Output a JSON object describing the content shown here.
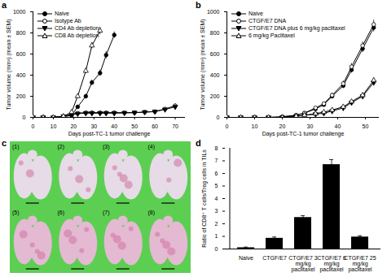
{
  "chart_data": [
    {
      "type": "line",
      "title": "a",
      "x_label": "Days post-TC-1 tumor challenge",
      "y_label": "Tumor volume (mm³) (mean ± SEM)",
      "xlim": [
        0,
        75
      ],
      "xticks": [
        0,
        10,
        20,
        30,
        40,
        50,
        60,
        70
      ],
      "ylim": [
        0,
        1000
      ],
      "yticks": [
        0,
        200,
        400,
        600,
        800,
        1000
      ],
      "legend": "top-left",
      "series": [
        {
          "name": "Naive",
          "color": "#000000",
          "marker": "circle",
          "x": [
            0,
            5,
            10,
            15,
            19,
            22,
            26,
            29,
            33,
            36,
            40
          ],
          "values": [
            0,
            0,
            0,
            5,
            20,
            100,
            200,
            330,
            420,
            590,
            780
          ],
          "errors": [
            0,
            0,
            0,
            2,
            5,
            15,
            20,
            25,
            30,
            35,
            30
          ]
        },
        {
          "name": "Isotype Ab",
          "color": "#000000",
          "marker": "circle-open",
          "x": [
            0,
            5,
            10,
            15,
            19,
            22,
            26,
            29,
            33,
            36,
            40,
            45,
            50,
            55,
            60,
            65,
            70
          ],
          "values": [
            0,
            0,
            0,
            10,
            30,
            40,
            45,
            45,
            45,
            45,
            45,
            45,
            45,
            50,
            55,
            80,
            110
          ],
          "errors": [
            0,
            0,
            0,
            3,
            5,
            5,
            5,
            5,
            5,
            5,
            5,
            5,
            5,
            5,
            5,
            10,
            20
          ]
        },
        {
          "name": "CD4 Ab depletion",
          "color": "#000000",
          "marker": "triangle-down",
          "x": [
            0,
            5,
            10,
            15,
            19,
            22,
            26,
            29,
            33,
            36,
            40,
            45,
            50,
            55,
            60,
            65,
            70
          ],
          "values": [
            0,
            0,
            0,
            10,
            25,
            35,
            40,
            40,
            40,
            40,
            40,
            42,
            45,
            50,
            55,
            75,
            100
          ],
          "errors": [
            0,
            0,
            0,
            3,
            5,
            5,
            5,
            5,
            5,
            5,
            5,
            5,
            5,
            5,
            5,
            10,
            15
          ]
        },
        {
          "name": "CD8 Ab depletion",
          "color": "#000000",
          "marker": "triangle-open",
          "x": [
            0,
            5,
            10,
            15,
            19,
            22,
            26,
            29,
            33
          ],
          "values": [
            0,
            0,
            0,
            10,
            50,
            200,
            440,
            680,
            820
          ],
          "errors": [
            0,
            0,
            0,
            3,
            8,
            15,
            25,
            30,
            35
          ]
        }
      ]
    },
    {
      "type": "line",
      "title": "b",
      "x_label": "Days post-TC-1 tumor challenge",
      "y_label": "Tumor volume (mm³) (mean ± SEM)",
      "xlim": [
        0,
        55
      ],
      "xticks": [
        0,
        10,
        20,
        30,
        40,
        50
      ],
      "ylim": [
        0,
        1000
      ],
      "yticks": [
        0,
        200,
        400,
        600,
        800,
        1000
      ],
      "legend": "top-left",
      "series": [
        {
          "name": "Naive",
          "color": "#000000",
          "marker": "circle",
          "x": [
            0,
            5,
            10,
            15,
            20,
            25,
            28,
            32,
            35,
            38,
            42,
            45,
            49,
            53
          ],
          "values": [
            0,
            0,
            0,
            0,
            5,
            20,
            40,
            80,
            120,
            200,
            300,
            450,
            650,
            850
          ],
          "errors": [
            0,
            0,
            0,
            0,
            2,
            5,
            8,
            10,
            15,
            20,
            25,
            30,
            35,
            40
          ]
        },
        {
          "name": "CTGF/E7 DNA",
          "color": "#000000",
          "marker": "circle-open",
          "x": [
            0,
            5,
            10,
            15,
            20,
            25,
            28,
            32,
            35,
            38,
            42,
            45,
            49,
            53
          ],
          "values": [
            0,
            0,
            0,
            0,
            5,
            20,
            40,
            90,
            130,
            210,
            320,
            480,
            680,
            880
          ],
          "errors": [
            0,
            0,
            0,
            0,
            2,
            5,
            8,
            10,
            15,
            20,
            25,
            30,
            35,
            40
          ]
        },
        {
          "name": "CTGF/E7 DNA plus 6 mg/kg paclitaxel",
          "color": "#000000",
          "marker": "triangle-down",
          "x": [
            0,
            5,
            10,
            15,
            20,
            25,
            28,
            32,
            35,
            38,
            42,
            45,
            49,
            53
          ],
          "values": [
            0,
            0,
            0,
            0,
            0,
            10,
            20,
            30,
            40,
            60,
            90,
            140,
            200,
            330
          ],
          "errors": [
            0,
            0,
            0,
            0,
            0,
            3,
            5,
            5,
            8,
            10,
            12,
            15,
            20,
            25
          ]
        },
        {
          "name": "6 mg/kg Paclitaxel",
          "color": "#000000",
          "marker": "triangle-open",
          "x": [
            0,
            5,
            10,
            15,
            20,
            25,
            28,
            32,
            35,
            38,
            42,
            45,
            49,
            53
          ],
          "values": [
            0,
            0,
            0,
            0,
            0,
            10,
            20,
            35,
            50,
            70,
            100,
            150,
            210,
            350
          ],
          "errors": [
            0,
            0,
            0,
            0,
            0,
            3,
            5,
            5,
            8,
            10,
            12,
            15,
            20,
            25
          ]
        }
      ]
    },
    {
      "type": "image",
      "title": "c",
      "labels": [
        "(1)",
        "(2)",
        "(3)",
        "(4)",
        "(5)",
        "(6)",
        "(7)",
        "(8)"
      ]
    },
    {
      "type": "bar",
      "title": "d",
      "y_label": "Ratio of CD8⁺ T cells/Treg cells in TILs",
      "categories": [
        "Naive",
        "CTGF/E7",
        "CTGF/E7 3 mg/kg paclitaxel",
        "CTGF/E7 6 mg/kg paclitaxel",
        "CTGF/E7 25 mg/kg paclitaxel"
      ],
      "values": [
        0.1,
        0.85,
        2.5,
        6.7,
        0.95
      ],
      "errors": [
        0.05,
        0.1,
        0.15,
        0.4,
        0.1
      ],
      "color": "#000000",
      "ylim": [
        0,
        8
      ],
      "yticks": [
        0,
        1,
        2,
        3,
        4,
        5,
        6,
        7,
        8
      ]
    }
  ]
}
